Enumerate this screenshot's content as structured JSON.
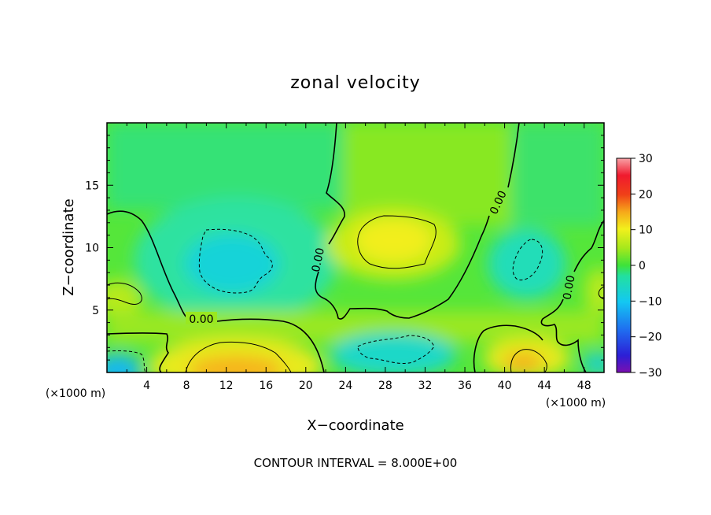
{
  "chart_data": {
    "type": "heatmap",
    "title": "zonal velocity",
    "xlabel": "X−coordinate",
    "ylabel": "Z−coordinate",
    "x_unit_left": "(×1000 m)",
    "x_unit_right": "(×1000 m)",
    "footer": "CONTOUR INTERVAL = 8.000E+00",
    "xlim": [
      0,
      50
    ],
    "ylim": [
      0,
      20
    ],
    "x_ticks": [
      "4",
      "8",
      "12",
      "16",
      "20",
      "24",
      "28",
      "32",
      "36",
      "40",
      "44",
      "48"
    ],
    "y_ticks": [
      "5",
      "10",
      "15"
    ],
    "colorbar": {
      "min": -30,
      "max": 30,
      "ticks": [
        "30",
        "20",
        "10",
        "0",
        "−10",
        "−20",
        "−30"
      ]
    },
    "contour_labels": [
      "0.00",
      "0.00",
      "0.00",
      "0.00"
    ]
  }
}
